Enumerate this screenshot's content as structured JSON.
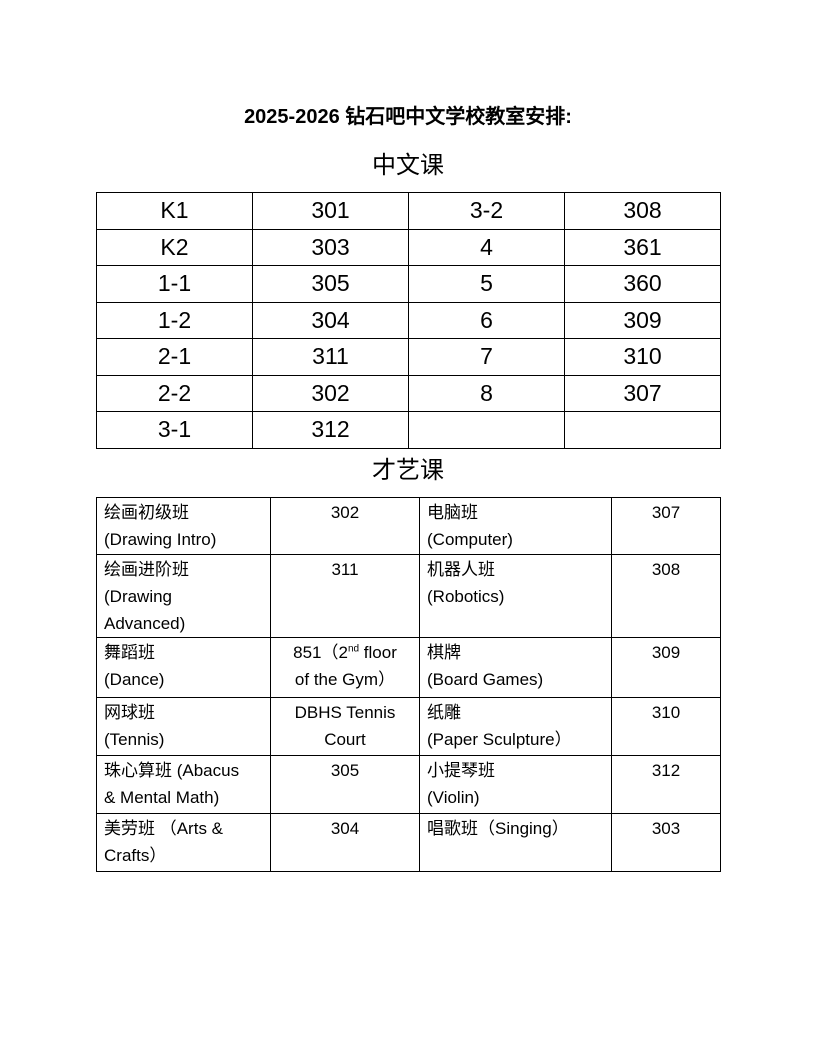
{
  "title": "2025-2026 钻石吧中文学校教室安排:",
  "chinese_section": {
    "heading": "中文课",
    "rows": [
      [
        "K1",
        "301",
        "3-2",
        "308"
      ],
      [
        "K2",
        "303",
        "4",
        "361"
      ],
      [
        "1-1",
        "305",
        "5",
        "360"
      ],
      [
        "1-2",
        "304",
        "6",
        "309"
      ],
      [
        "2-1",
        "311",
        "7",
        "310"
      ],
      [
        "2-2",
        "302",
        "8",
        "307"
      ],
      [
        "3-1",
        "312",
        "",
        ""
      ]
    ]
  },
  "arts_section": {
    "heading": "才艺课",
    "rows": [
      [
        "绘画初级班\n(Drawing Intro)",
        "302",
        "电脑班\n(Computer)",
        "307"
      ],
      [
        "绘画进阶班\n(Drawing\nAdvanced)",
        "311",
        "机器人班\n(Robotics)",
        "308"
      ],
      [
        "舞蹈班\n(Dance)",
        {
          "pre": "851（2",
          "sup": "nd",
          "post": " floor\nof the Gym）"
        },
        "棋牌\n(Board Games)",
        "309"
      ],
      [
        "网球班\n(Tennis)",
        "DBHS Tennis\nCourt",
        "纸雕\n(Paper Sculpture）",
        "310"
      ],
      [
        "珠心算班 (Abacus\n& Mental Math)",
        "305",
        "小提琴班\n(Violin)",
        "312"
      ],
      [
        "美劳班 （Arts &\nCrafts）",
        "304",
        "唱歌班（Singing）",
        "303"
      ]
    ]
  }
}
